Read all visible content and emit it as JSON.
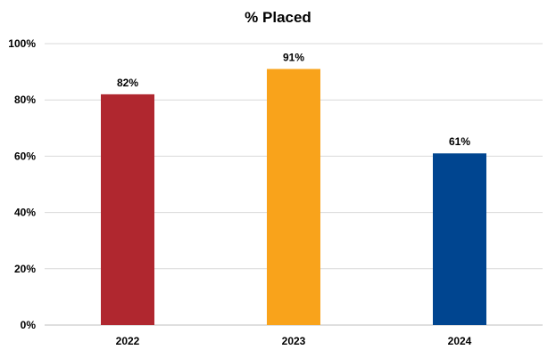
{
  "chart_data": {
    "type": "bar",
    "title": "% Placed",
    "xlabel": "",
    "ylabel": "",
    "categories": [
      "2022",
      "2023",
      "2024"
    ],
    "values": [
      82,
      91,
      61
    ],
    "data_labels": [
      "82%",
      "91%",
      "61%"
    ],
    "bar_colors": [
      "#B0272F",
      "#F9A31B",
      "#004590"
    ],
    "ylim": [
      0,
      100
    ],
    "yticks": [
      0,
      20,
      40,
      60,
      80,
      100
    ],
    "ytick_labels": [
      "0%",
      "20%",
      "40%",
      "60%",
      "80%",
      "100%"
    ],
    "grid": true,
    "legend": "none"
  }
}
